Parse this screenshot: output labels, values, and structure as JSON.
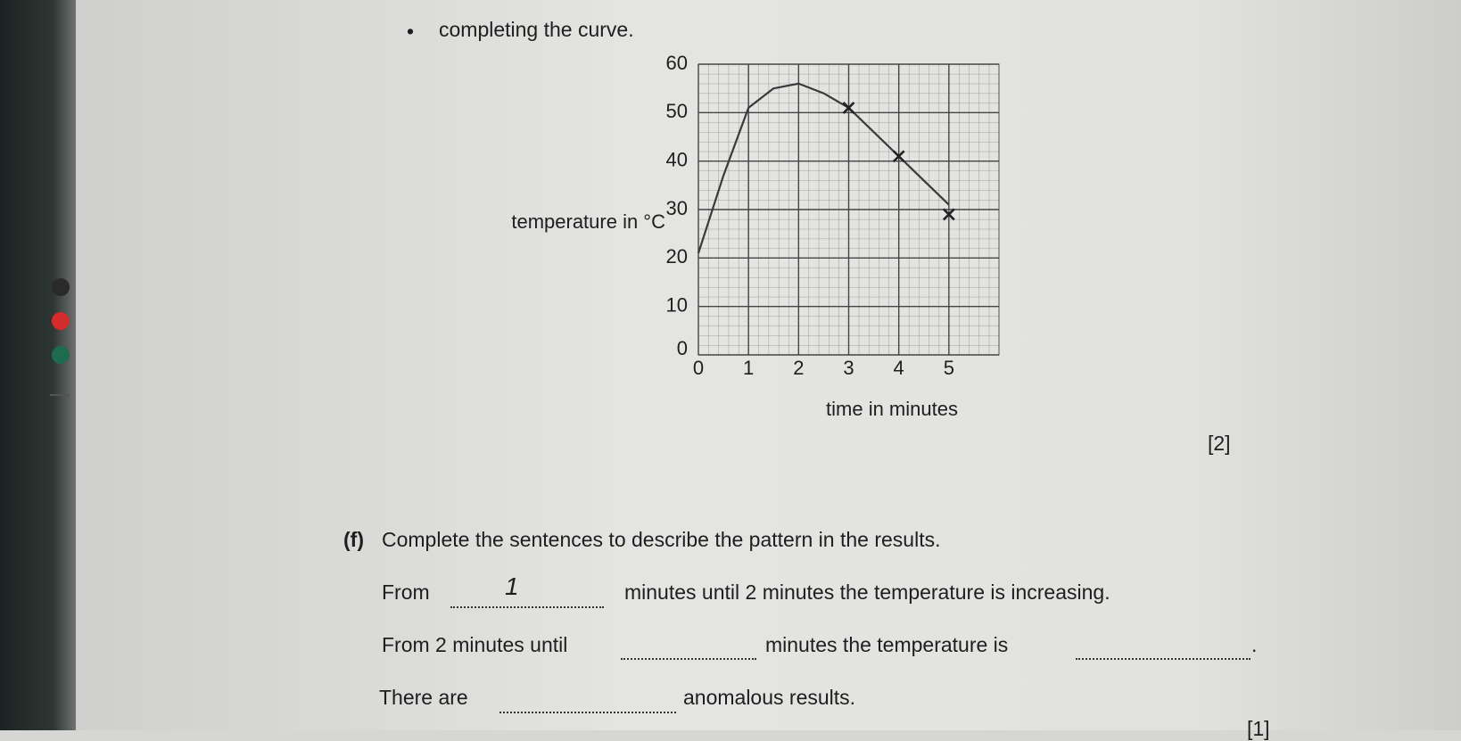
{
  "instructions": {
    "bullet": "completing the curve."
  },
  "chart_data": {
    "type": "line",
    "ylabel": "temperature in °C",
    "xlabel": "time in minutes",
    "x": [
      0,
      0.5,
      1,
      1.5,
      2,
      2.5,
      3,
      3.5,
      4,
      4.5,
      5
    ],
    "series": [
      {
        "color": "#3a3a3a",
        "values": [
          21,
          37,
          51,
          55,
          56,
          54,
          51,
          46,
          41,
          36,
          31
        ]
      }
    ],
    "markers": {
      "color": "#222222",
      "x": [
        3,
        4,
        5
      ],
      "y": [
        51,
        41,
        29
      ]
    },
    "xlim": [
      0,
      6
    ],
    "ylim": [
      0,
      60
    ],
    "xticks": [
      0,
      1,
      2,
      3,
      4,
      5
    ],
    "yticks": [
      0,
      10,
      20,
      30,
      40,
      50,
      60
    ],
    "grid": true
  },
  "mark_2": "[2]",
  "question": {
    "label": "(f)",
    "text": "Complete the sentences to describe the pattern in the results."
  },
  "sentences": [
    {
      "start": "From",
      "answer": "1",
      "end": "minutes until 2 minutes the temperature is increasing."
    },
    {
      "start": "From 2 minutes until",
      "middle": "minutes the temperature is",
      "end": "."
    },
    {
      "start": "There are",
      "end": "anomalous results."
    }
  ],
  "mark_1": "[1]"
}
